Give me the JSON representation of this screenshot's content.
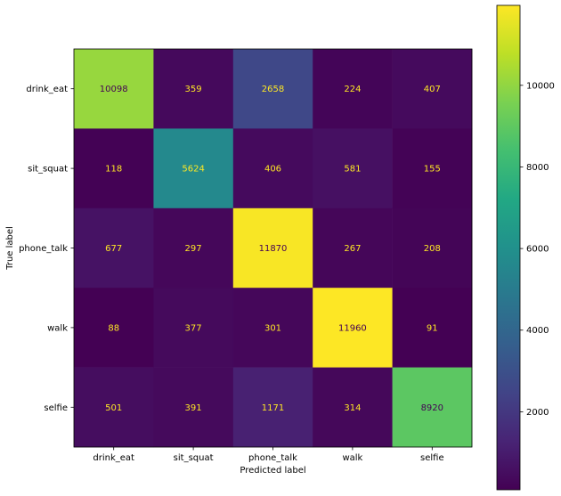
{
  "chart_data": {
    "type": "heatmap",
    "title": "",
    "xlabel": "Predicted label",
    "ylabel": "True label",
    "x_categories": [
      "drink_eat",
      "sit_squat",
      "phone_talk",
      "walk",
      "selfie"
    ],
    "y_categories": [
      "drink_eat",
      "sit_squat",
      "phone_talk",
      "walk",
      "selfie"
    ],
    "values": [
      [
        10098,
        359,
        2658,
        224,
        407
      ],
      [
        118,
        5624,
        406,
        581,
        155
      ],
      [
        677,
        297,
        11870,
        267,
        208
      ],
      [
        88,
        377,
        301,
        11960,
        91
      ],
      [
        501,
        391,
        1171,
        314,
        8920
      ]
    ],
    "colormap": "viridis",
    "colorbar": {
      "range": [
        88,
        11960
      ],
      "ticks": [
        2000,
        4000,
        6000,
        8000,
        10000
      ],
      "tick_labels": [
        "2000",
        "4000",
        "6000",
        "8000",
        "10000"
      ]
    },
    "text_colors": {
      "on_dark": "#fde725",
      "on_light": "#440154"
    }
  }
}
